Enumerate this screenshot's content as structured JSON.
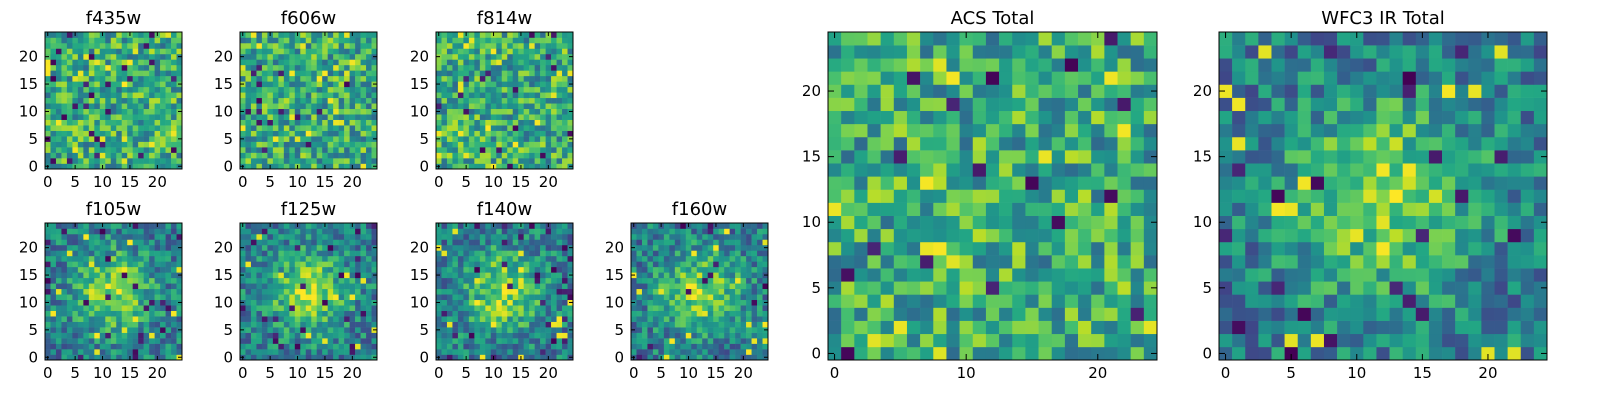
{
  "chart_data": {
    "type": "heatmap",
    "colormap": "viridis",
    "panels": [
      {
        "title": "f435w",
        "size": "small",
        "xticks": [
          0,
          5,
          10,
          15,
          20
        ],
        "yticks": [
          0,
          5,
          10,
          15,
          20
        ],
        "grid_size": 25,
        "extent": [
          0,
          24
        ],
        "pattern": "noise",
        "seed": 11
      },
      {
        "title": "f606w",
        "size": "small",
        "xticks": [
          0,
          5,
          10,
          15,
          20
        ],
        "yticks": [
          0,
          5,
          10,
          15,
          20
        ],
        "grid_size": 25,
        "extent": [
          0,
          24
        ],
        "pattern": "noise",
        "seed": 23
      },
      {
        "title": "f814w",
        "size": "small",
        "xticks": [
          0,
          5,
          10,
          15,
          20
        ],
        "yticks": [
          0,
          5,
          10,
          15,
          20
        ],
        "grid_size": 25,
        "extent": [
          0,
          24
        ],
        "pattern": "noise",
        "seed": 37
      },
      {
        "title": "f105w",
        "size": "small",
        "xticks": [
          0,
          5,
          10,
          15,
          20
        ],
        "yticks": [
          0,
          5,
          10,
          15,
          20
        ],
        "grid_size": 25,
        "extent": [
          0,
          24
        ],
        "pattern": "blob",
        "seed": 41
      },
      {
        "title": "f125w",
        "size": "small",
        "xticks": [
          0,
          5,
          10,
          15,
          20
        ],
        "yticks": [
          0,
          5,
          10,
          15,
          20
        ],
        "grid_size": 25,
        "extent": [
          0,
          24
        ],
        "pattern": "blob",
        "seed": 53
      },
      {
        "title": "f140w",
        "size": "small",
        "xticks": [
          0,
          5,
          10,
          15,
          20
        ],
        "yticks": [
          0,
          5,
          10,
          15,
          20
        ],
        "grid_size": 25,
        "extent": [
          0,
          24
        ],
        "pattern": "blob",
        "seed": 67
      },
      {
        "title": "f160w",
        "size": "small",
        "xticks": [
          0,
          5,
          10,
          15,
          20
        ],
        "yticks": [
          0,
          5,
          10,
          15,
          20
        ],
        "grid_size": 25,
        "extent": [
          0,
          24
        ],
        "pattern": "blob",
        "seed": 79
      },
      {
        "title": "ACS Total",
        "size": "large",
        "xticks": [
          0,
          10,
          20
        ],
        "yticks": [
          0,
          5,
          10,
          15,
          20
        ],
        "grid_size": 25,
        "extent": [
          0,
          24
        ],
        "pattern": "noise",
        "seed": 97
      },
      {
        "title": "WFC3 IR Total",
        "size": "large",
        "xticks": [
          0,
          5,
          10,
          15,
          20
        ],
        "yticks": [
          0,
          5,
          10,
          15,
          20
        ],
        "grid_size": 25,
        "extent": [
          0,
          24
        ],
        "pattern": "blob",
        "seed": 113
      }
    ]
  }
}
